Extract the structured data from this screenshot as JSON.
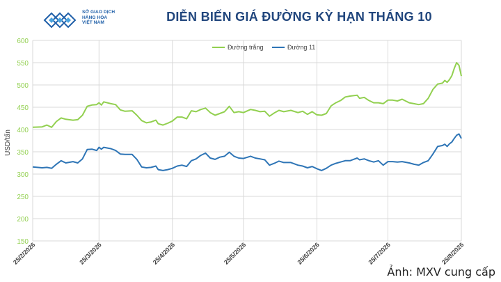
{
  "header": {
    "logo_lines": [
      "SỞ GIAO DỊCH",
      "HÀNG HÓA",
      "VIỆT NAM"
    ],
    "title": "DIỄN BIẾN GIÁ ĐƯỜNG KỲ HẠN THÁNG 10"
  },
  "caption": "Ảnh: MXV cung cấp",
  "colors": {
    "white_sugar": "#92d050",
    "raw_sugar": "#2e75b6",
    "axis_labels": "#92d050",
    "title": "#21467d"
  },
  "chart_data": {
    "type": "line",
    "title": "DIỄN BIẾN GIÁ ĐƯỜNG KỲ HẠN THÁNG 10",
    "xlabel": "",
    "ylabel": "USD/tấn",
    "ylim": [
      150,
      600
    ],
    "yticks": [
      150,
      200,
      250,
      300,
      350,
      400,
      450,
      500,
      550,
      600
    ],
    "xlim": [
      "2026-02-25",
      "2026-08-25"
    ],
    "xticks": [
      "25/2/2026",
      "25/3/2026",
      "25/4/2026",
      "25/5/2026",
      "25/6/2026",
      "25/7/2026",
      "25/8/2026"
    ],
    "grid": true,
    "legend_position": "top-center",
    "series": [
      {
        "name": "Đường trắng",
        "color": "#92d050",
        "points": [
          [
            "2026-02-25",
            405
          ],
          [
            "2026-03-01",
            406
          ],
          [
            "2026-03-03",
            410
          ],
          [
            "2026-03-05",
            405
          ],
          [
            "2026-03-07",
            418
          ],
          [
            "2026-03-09",
            426
          ],
          [
            "2026-03-11",
            423
          ],
          [
            "2026-03-14",
            421
          ],
          [
            "2026-03-16",
            422
          ],
          [
            "2026-03-18",
            432
          ],
          [
            "2026-03-20",
            452
          ],
          [
            "2026-03-22",
            455
          ],
          [
            "2026-03-24",
            456
          ],
          [
            "2026-03-25",
            460
          ],
          [
            "2026-03-26",
            455
          ],
          [
            "2026-03-27",
            462
          ],
          [
            "2026-03-30",
            458
          ],
          [
            "2026-04-01",
            456
          ],
          [
            "2026-04-03",
            444
          ],
          [
            "2026-04-05",
            441
          ],
          [
            "2026-04-08",
            442
          ],
          [
            "2026-04-10",
            432
          ],
          [
            "2026-04-12",
            420
          ],
          [
            "2026-04-14",
            415
          ],
          [
            "2026-04-16",
            417
          ],
          [
            "2026-04-18",
            421
          ],
          [
            "2026-04-19",
            413
          ],
          [
            "2026-04-21",
            410
          ],
          [
            "2026-04-23",
            414
          ],
          [
            "2026-04-25",
            419
          ],
          [
            "2026-04-27",
            428
          ],
          [
            "2026-04-29",
            428
          ],
          [
            "2026-05-01",
            424
          ],
          [
            "2026-05-03",
            442
          ],
          [
            "2026-05-05",
            440
          ],
          [
            "2026-05-07",
            445
          ],
          [
            "2026-05-09",
            448
          ],
          [
            "2026-05-11",
            438
          ],
          [
            "2026-05-13",
            432
          ],
          [
            "2026-05-15",
            436
          ],
          [
            "2026-05-17",
            440
          ],
          [
            "2026-05-19",
            452
          ],
          [
            "2026-05-21",
            438
          ],
          [
            "2026-05-23",
            440
          ],
          [
            "2026-05-25",
            438
          ],
          [
            "2026-05-28",
            445
          ],
          [
            "2026-05-30",
            443
          ],
          [
            "2026-06-01",
            440
          ],
          [
            "2026-06-03",
            441
          ],
          [
            "2026-06-05",
            430
          ],
          [
            "2026-06-07",
            437
          ],
          [
            "2026-06-09",
            443
          ],
          [
            "2026-06-11",
            440
          ],
          [
            "2026-06-14",
            443
          ],
          [
            "2026-06-17",
            438
          ],
          [
            "2026-06-19",
            441
          ],
          [
            "2026-06-21",
            434
          ],
          [
            "2026-06-23",
            440
          ],
          [
            "2026-06-25",
            433
          ],
          [
            "2026-06-27",
            432
          ],
          [
            "2026-06-29",
            436
          ],
          [
            "2026-07-01",
            453
          ],
          [
            "2026-07-03",
            460
          ],
          [
            "2026-07-05",
            465
          ],
          [
            "2026-07-07",
            473
          ],
          [
            "2026-07-09",
            475
          ],
          [
            "2026-07-12",
            477
          ],
          [
            "2026-07-13",
            470
          ],
          [
            "2026-07-15",
            472
          ],
          [
            "2026-07-17",
            465
          ],
          [
            "2026-07-19",
            460
          ],
          [
            "2026-07-21",
            460
          ],
          [
            "2026-07-23",
            458
          ],
          [
            "2026-07-25",
            466
          ],
          [
            "2026-07-27",
            466
          ],
          [
            "2026-07-29",
            464
          ],
          [
            "2026-07-31",
            468
          ],
          [
            "2026-08-03",
            460
          ],
          [
            "2026-08-05",
            458
          ],
          [
            "2026-08-07",
            456
          ],
          [
            "2026-08-09",
            458
          ],
          [
            "2026-08-11",
            470
          ],
          [
            "2026-08-13",
            490
          ],
          [
            "2026-08-15",
            502
          ],
          [
            "2026-08-17",
            504
          ],
          [
            "2026-08-18",
            510
          ],
          [
            "2026-08-19",
            506
          ],
          [
            "2026-08-20",
            512
          ],
          [
            "2026-08-21",
            521
          ],
          [
            "2026-08-22",
            537
          ],
          [
            "2026-08-23",
            550
          ],
          [
            "2026-08-24",
            544
          ],
          [
            "2026-08-25",
            520
          ]
        ]
      },
      {
        "name": "Đường 11",
        "color": "#2e75b6",
        "points": [
          [
            "2026-02-25",
            316
          ],
          [
            "2026-03-01",
            314
          ],
          [
            "2026-03-03",
            315
          ],
          [
            "2026-03-05",
            313
          ],
          [
            "2026-03-07",
            322
          ],
          [
            "2026-03-09",
            330
          ],
          [
            "2026-03-11",
            325
          ],
          [
            "2026-03-14",
            328
          ],
          [
            "2026-03-16",
            325
          ],
          [
            "2026-03-18",
            334
          ],
          [
            "2026-03-20",
            355
          ],
          [
            "2026-03-22",
            356
          ],
          [
            "2026-03-24",
            353
          ],
          [
            "2026-03-25",
            360
          ],
          [
            "2026-03-26",
            356
          ],
          [
            "2026-03-27",
            360
          ],
          [
            "2026-03-30",
            357
          ],
          [
            "2026-04-01",
            353
          ],
          [
            "2026-04-03",
            345
          ],
          [
            "2026-04-05",
            344
          ],
          [
            "2026-04-08",
            344
          ],
          [
            "2026-04-10",
            333
          ],
          [
            "2026-04-12",
            316
          ],
          [
            "2026-04-14",
            314
          ],
          [
            "2026-04-16",
            315
          ],
          [
            "2026-04-18",
            318
          ],
          [
            "2026-04-19",
            310
          ],
          [
            "2026-04-21",
            308
          ],
          [
            "2026-04-23",
            310
          ],
          [
            "2026-04-25",
            313
          ],
          [
            "2026-04-27",
            318
          ],
          [
            "2026-04-29",
            320
          ],
          [
            "2026-05-01",
            317
          ],
          [
            "2026-05-03",
            330
          ],
          [
            "2026-05-05",
            334
          ],
          [
            "2026-05-07",
            342
          ],
          [
            "2026-05-09",
            347
          ],
          [
            "2026-05-11",
            336
          ],
          [
            "2026-05-13",
            333
          ],
          [
            "2026-05-15",
            338
          ],
          [
            "2026-05-17",
            340
          ],
          [
            "2026-05-19",
            349
          ],
          [
            "2026-05-21",
            340
          ],
          [
            "2026-05-23",
            336
          ],
          [
            "2026-05-25",
            335
          ],
          [
            "2026-05-28",
            340
          ],
          [
            "2026-05-30",
            336
          ],
          [
            "2026-06-01",
            334
          ],
          [
            "2026-06-03",
            332
          ],
          [
            "2026-06-05",
            320
          ],
          [
            "2026-06-07",
            324
          ],
          [
            "2026-06-09",
            329
          ],
          [
            "2026-06-11",
            326
          ],
          [
            "2026-06-14",
            326
          ],
          [
            "2026-06-17",
            320
          ],
          [
            "2026-06-19",
            318
          ],
          [
            "2026-06-21",
            314
          ],
          [
            "2026-06-23",
            317
          ],
          [
            "2026-06-25",
            312
          ],
          [
            "2026-06-27",
            308
          ],
          [
            "2026-06-29",
            313
          ],
          [
            "2026-07-01",
            320
          ],
          [
            "2026-07-03",
            324
          ],
          [
            "2026-07-05",
            327
          ],
          [
            "2026-07-07",
            330
          ],
          [
            "2026-07-09",
            330
          ],
          [
            "2026-07-12",
            336
          ],
          [
            "2026-07-13",
            332
          ],
          [
            "2026-07-15",
            334
          ],
          [
            "2026-07-17",
            330
          ],
          [
            "2026-07-19",
            327
          ],
          [
            "2026-07-21",
            330
          ],
          [
            "2026-07-23",
            320
          ],
          [
            "2026-07-25",
            328
          ],
          [
            "2026-07-27",
            328
          ],
          [
            "2026-07-29",
            327
          ],
          [
            "2026-07-31",
            328
          ],
          [
            "2026-08-03",
            325
          ],
          [
            "2026-08-05",
            322
          ],
          [
            "2026-08-07",
            320
          ],
          [
            "2026-08-09",
            326
          ],
          [
            "2026-08-11",
            330
          ],
          [
            "2026-08-13",
            345
          ],
          [
            "2026-08-15",
            362
          ],
          [
            "2026-08-17",
            364
          ],
          [
            "2026-08-18",
            367
          ],
          [
            "2026-08-19",
            362
          ],
          [
            "2026-08-20",
            368
          ],
          [
            "2026-08-21",
            372
          ],
          [
            "2026-08-22",
            380
          ],
          [
            "2026-08-23",
            387
          ],
          [
            "2026-08-24",
            390
          ],
          [
            "2026-08-25",
            380
          ]
        ]
      }
    ]
  }
}
